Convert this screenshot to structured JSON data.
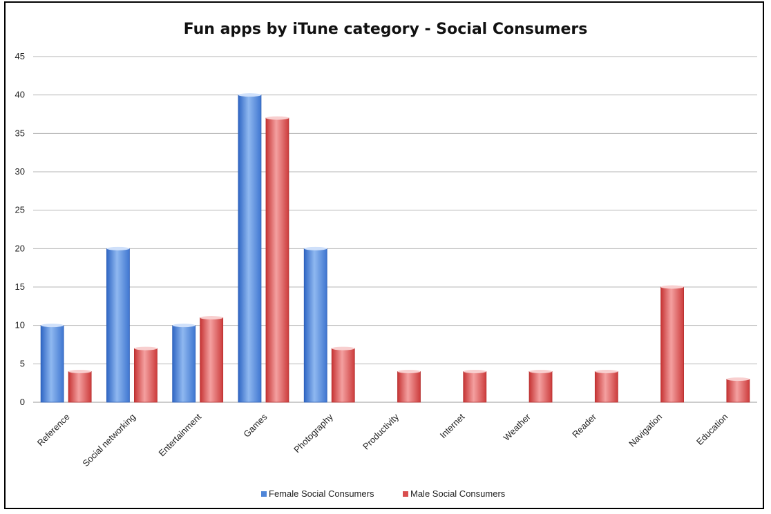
{
  "chart_data": {
    "type": "bar",
    "title": "Fun apps by iTune category - Social Consumers",
    "xlabel": "",
    "ylabel": "",
    "ylim": [
      0,
      45
    ],
    "yticks": [
      0,
      5,
      10,
      15,
      20,
      25,
      30,
      35,
      40,
      45
    ],
    "grid": true,
    "legend": "bottom",
    "categories": [
      "Reference",
      "Social networking",
      "Entertainment",
      "Games",
      "Photography",
      "Productivity",
      "Internet",
      "Weather",
      "Reader",
      "Navigation",
      "Education"
    ],
    "series": [
      {
        "name": "Female Social Consumers",
        "color": "#4f86d8",
        "values": [
          10,
          20,
          10,
          40,
          20,
          0,
          0,
          0,
          0,
          0,
          0
        ]
      },
      {
        "name": "Male Social Consumers",
        "color": "#d94e4e",
        "values": [
          4,
          7,
          11,
          37,
          7,
          4,
          4,
          4,
          4,
          15,
          3
        ]
      }
    ]
  }
}
